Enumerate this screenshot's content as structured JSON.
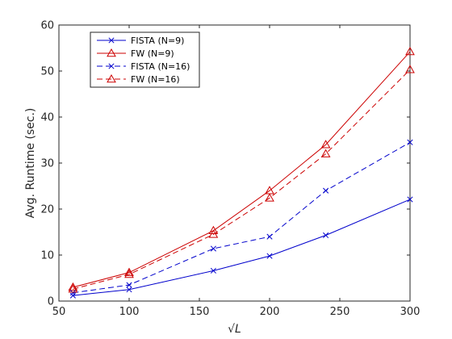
{
  "chart_data": {
    "type": "line",
    "xlabel": "√L",
    "ylabel": "Avg. Runtime (sec.)",
    "xlim": [
      50,
      300
    ],
    "ylim": [
      0,
      60
    ],
    "xticks": [
      50,
      100,
      150,
      200,
      250,
      300
    ],
    "yticks": [
      0,
      10,
      20,
      30,
      40,
      50,
      60
    ],
    "grid": false,
    "legend_position": "top-left",
    "x": [
      60,
      100,
      160,
      200,
      240,
      300
    ],
    "series": [
      {
        "name": "FISTA (N=9)",
        "color": "#0000cc",
        "dash": "solid",
        "marker": "x",
        "values": [
          1.2,
          2.5,
          6.6,
          9.8,
          14.3,
          22.1
        ]
      },
      {
        "name": "FW (N=9)",
        "color": "#cc0000",
        "dash": "solid",
        "marker": "triangle",
        "values": [
          3.0,
          6.2,
          15.3,
          24.0,
          34.0,
          54.2
        ]
      },
      {
        "name": "FISTA (N=16)",
        "color": "#0000cc",
        "dash": "dashed",
        "marker": "x",
        "values": [
          1.8,
          3.5,
          11.4,
          14.0,
          24.0,
          34.5
        ]
      },
      {
        "name": "FW (N=16)",
        "color": "#cc0000",
        "dash": "dashed",
        "marker": "triangle",
        "values": [
          2.6,
          5.8,
          14.5,
          22.4,
          32.0,
          50.3
        ]
      }
    ]
  }
}
